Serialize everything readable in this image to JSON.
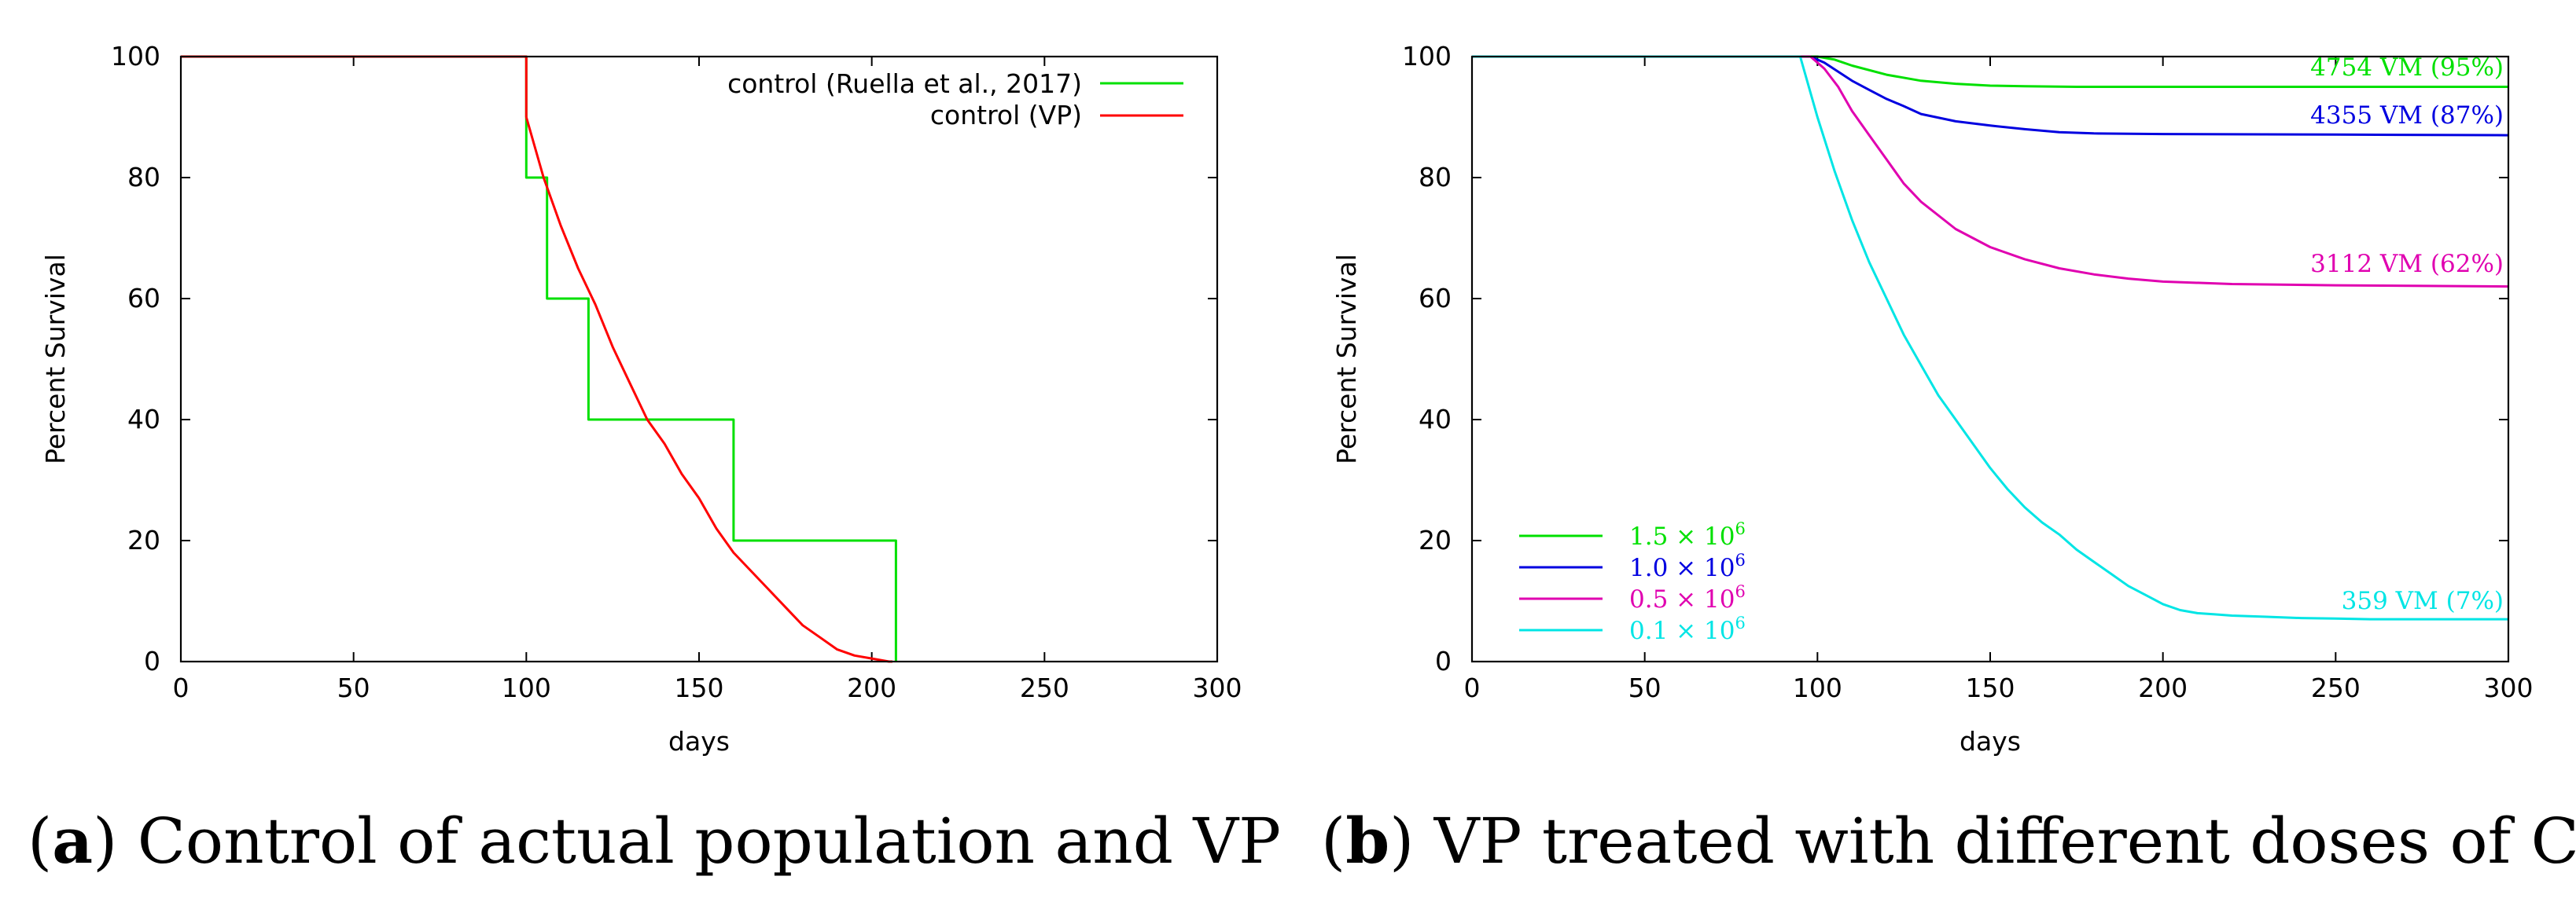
{
  "chart_data": [
    {
      "panel": "a",
      "type": "line",
      "caption_label": "a",
      "caption_text": "Control of actual population and VP",
      "xlabel": "days",
      "ylabel": "Percent Survival",
      "xlim": [
        0,
        300
      ],
      "ylim": [
        0,
        100
      ],
      "xticks": [
        0,
        50,
        100,
        150,
        200,
        250,
        300
      ],
      "yticks": [
        0,
        20,
        40,
        60,
        80,
        100
      ],
      "legend_position": "top-right",
      "series": [
        {
          "name": "control (Ruella et al., 2017)",
          "color": "#00e000",
          "step": true,
          "x": [
            0,
            100,
            100,
            106,
            106,
            118,
            118,
            160,
            160,
            207,
            207
          ],
          "y": [
            100,
            100,
            80,
            80,
            60,
            60,
            40,
            40,
            20,
            20,
            0
          ]
        },
        {
          "name": "control (VP)",
          "color": "#ff0000",
          "step": false,
          "x": [
            0,
            100,
            100,
            105,
            110,
            115,
            120,
            125,
            130,
            135,
            140,
            145,
            150,
            155,
            160,
            165,
            170,
            175,
            180,
            185,
            190,
            195,
            200,
            205,
            206
          ],
          "y": [
            100,
            100,
            90,
            80,
            72,
            65,
            59,
            52,
            46,
            40,
            36,
            31,
            27,
            22,
            18,
            15,
            12,
            9,
            6,
            4,
            2,
            1,
            0.5,
            0,
            0
          ]
        }
      ]
    },
    {
      "panel": "b",
      "type": "line",
      "caption_label": "b",
      "caption_text": "VP treated with different doses of CAR-T",
      "xlabel": "days",
      "ylabel": "Percent Survival",
      "xlim": [
        0,
        300
      ],
      "ylim": [
        0,
        100
      ],
      "xticks": [
        0,
        50,
        100,
        150,
        200,
        250,
        300
      ],
      "yticks": [
        0,
        20,
        40,
        60,
        80,
        100
      ],
      "legend_position": "bottom-left",
      "series": [
        {
          "name_mantissa": "1.5",
          "name_base": "× 10",
          "name_exp": "6",
          "color": "#00e000",
          "annotation": "4754 VM (95%)",
          "x": [
            0,
            95,
            100,
            105,
            110,
            120,
            130,
            140,
            150,
            160,
            175,
            200,
            250,
            300
          ],
          "y": [
            100,
            100,
            100,
            99.5,
            98.5,
            97,
            96,
            95.5,
            95.2,
            95.1,
            95,
            95,
            95,
            95
          ]
        },
        {
          "name_mantissa": "1.0",
          "name_base": "× 10",
          "name_exp": "6",
          "color": "#0000e0",
          "annotation": "4355 VM (87%)",
          "x": [
            0,
            95,
            98,
            102,
            106,
            110,
            115,
            120,
            125,
            130,
            140,
            150,
            160,
            170,
            180,
            200,
            250,
            300
          ],
          "y": [
            100,
            100,
            100,
            99,
            97.5,
            96,
            94.5,
            93,
            91.8,
            90.5,
            89.3,
            88.6,
            88,
            87.5,
            87.3,
            87.2,
            87.1,
            87
          ]
        },
        {
          "name_mantissa": "0.5",
          "name_base": "× 10",
          "name_exp": "6",
          "color": "#e000b0",
          "annotation": "3112 VM (62%)",
          "x": [
            0,
            95,
            98,
            102,
            106,
            110,
            115,
            120,
            125,
            130,
            140,
            150,
            160,
            170,
            180,
            190,
            200,
            220,
            250,
            300
          ],
          "y": [
            100,
            100,
            100,
            98,
            95,
            91,
            87,
            83,
            79,
            76,
            71.5,
            68.5,
            66.5,
            65,
            64,
            63.3,
            62.8,
            62.4,
            62.2,
            62
          ]
        },
        {
          "name_mantissa": "0.1",
          "name_base": "× 10",
          "name_exp": "6",
          "color": "#00e5e5",
          "annotation": "359 VM (7%)",
          "x": [
            0,
            95,
            100,
            105,
            110,
            115,
            120,
            125,
            130,
            135,
            140,
            145,
            150,
            155,
            160,
            165,
            170,
            175,
            180,
            185,
            190,
            195,
            200,
            205,
            210,
            215,
            220,
            230,
            240,
            250,
            260,
            280,
            300
          ],
          "y": [
            100,
            100,
            90,
            81,
            73,
            66,
            60,
            54,
            49,
            44,
            40,
            36,
            32,
            28.5,
            25.5,
            23,
            21,
            18.5,
            16.5,
            14.5,
            12.5,
            11,
            9.5,
            8.5,
            8,
            7.8,
            7.6,
            7.4,
            7.2,
            7.1,
            7,
            7,
            7
          ]
        }
      ]
    }
  ]
}
